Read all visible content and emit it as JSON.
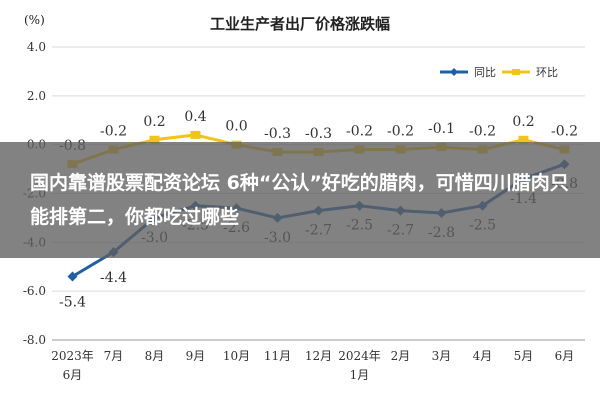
{
  "chart_data": {
    "type": "line",
    "title": "工业生产者出厂价格涨跌幅",
    "ylabel": "(%)",
    "ylim": [
      -8.0,
      4.0
    ],
    "yticks": [
      "4.0",
      "2.0",
      "0.0",
      "-2.0",
      "-4.0",
      "-6.0",
      "-8.0"
    ],
    "ytick_values": [
      4,
      2,
      0,
      -2,
      -4,
      -6,
      -8
    ],
    "categories": [
      "2023年\n6月",
      "7月",
      "8月",
      "9月",
      "10月",
      "11月",
      "12月",
      "2024年\n1月",
      "2月",
      "3月",
      "4月",
      "5月",
      "6月"
    ],
    "grid": true,
    "legend_position": "top-right",
    "series": [
      {
        "name": "同比",
        "color": "#1f5fa8",
        "values": [
          -5.4,
          -4.4,
          -3.0,
          -2.5,
          -2.6,
          -3.0,
          -2.7,
          -2.5,
          -2.7,
          -2.8,
          -2.5,
          -1.4,
          -0.8
        ],
        "labels": [
          "-5.4",
          "-4.4",
          "-3.0",
          "-2.5",
          "-2.6",
          "-3.0",
          "-2.7",
          "-2.5",
          "-2.7",
          "-2.8",
          "-2.5",
          "-1.4",
          "-0.8"
        ]
      },
      {
        "name": "环比",
        "color": "#f2c418",
        "values": [
          -0.8,
          -0.2,
          0.2,
          0.4,
          0.0,
          -0.3,
          -0.3,
          -0.2,
          -0.2,
          -0.1,
          -0.2,
          0.2,
          -0.2
        ],
        "labels": [
          "-0.8",
          "-0.2",
          "0.2",
          "0.4",
          "0.0",
          "-0.3",
          "-0.3",
          "-0.2",
          "-0.2",
          "-0.1",
          "-0.2",
          "0.2",
          "-0.2"
        ]
      }
    ]
  },
  "overlay": {
    "headline": "国内靠谱股票配资论坛 6种“公认”好吃的腊肉，可惜四川腊肉只能排第二，你都吃过哪些"
  }
}
